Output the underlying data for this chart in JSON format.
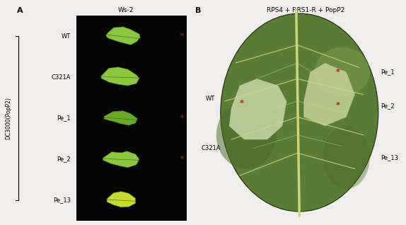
{
  "figure_width": 5.74,
  "figure_height": 3.18,
  "bg_color": "#f0eeec",
  "panel_A_label": "A",
  "panel_B_label": "B",
  "panel_A_title": "Ws-2",
  "panel_B_title": "RPS4 + RRS1-R + PopP2",
  "left_bracket_label": "DC3000(PopP2)",
  "panel_A_row_labels": [
    "WT",
    "C321A",
    "Pe_1",
    "Pe_2",
    "Pe_13"
  ],
  "panel_A_asterisk_rows": [
    0,
    2,
    3
  ],
  "asterisk_color": "#cc0000",
  "label_fontsize": 6.0,
  "title_fontsize": 6.5,
  "panel_label_fontsize": 8,
  "bracket_label_fontsize": 5.5,
  "black_panel_bg": "#050505",
  "leaf_bright_green": "#8dc63f",
  "leaf_mid_green": "#6aaa28",
  "leaf_dark_green": "#3d7a18",
  "leaf_yellow": "#c8d930",
  "tobacco_dark": "#4a6b2a",
  "tobacco_mid": "#5a7d35",
  "tobacco_light": "#7a9d50",
  "vein_color": "#c8d880",
  "pale_zone": "#c8d8a0",
  "white_zone": "#dde8c0"
}
